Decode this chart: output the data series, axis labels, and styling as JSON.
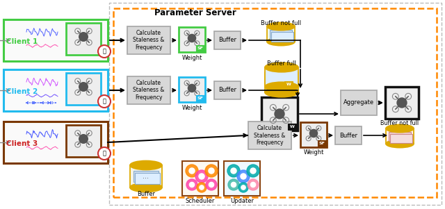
{
  "title": "Parameter Server",
  "client_labels": [
    "Client 1",
    "Client 2",
    "Client 3"
  ],
  "client_colors": [
    "#44cc44",
    "#22bbee",
    "#cc2222"
  ],
  "client_border_colors": [
    "#44cc44",
    "#22bbee",
    "#7a3800"
  ],
  "bg_color": "#ffffff",
  "server_box_color": "#ff8800",
  "outer_box_color": "#aaaaaa",
  "buffer_not_full_label_1": "Buffer not full",
  "buffer_full_label": "Buffer full",
  "buffer_not_full_label_2": "Buffer not full",
  "aggregate_label": "Aggregate",
  "weight_label": "Weight",
  "buffer_label": "Buffer",
  "scheduler_label": "Scheduler",
  "updater_label": "Updater",
  "calc_label": "Calculate\nStaleness &\nFrequency",
  "sf_label": "SF",
  "w_label": "W",
  "cylinder_color": "#ddaa00",
  "gray_box_color": "#d8d8d8",
  "gray_border_color": "#aaaaaa"
}
